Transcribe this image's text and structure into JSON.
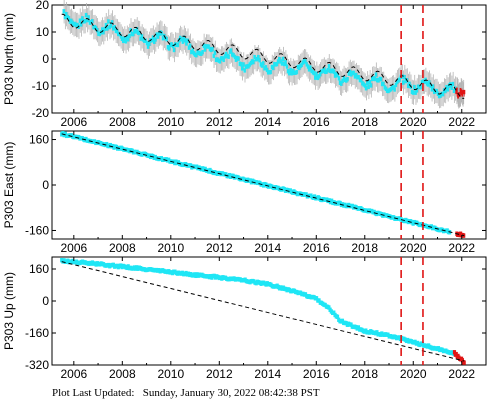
{
  "footer": {
    "label": "Plot Last Updated:",
    "value": "Sunday, January 30, 2022 08:42:38 PST"
  },
  "colors": {
    "data": "#1fe6f5",
    "error": "#b4b4b4",
    "recent": "#e01515",
    "trend": "#000000",
    "event": "#e01515"
  },
  "chart_data": [
    {
      "type": "scatter",
      "title": "",
      "xlabel": "",
      "ylabel": "P303 North (mm)",
      "xlim": [
        2005.1,
        2023.0
      ],
      "ylim": [
        -20,
        20
      ],
      "xticks": [
        2006,
        2008,
        2010,
        2012,
        2014,
        2016,
        2018,
        2020,
        2022
      ],
      "yticks": [
        -20,
        -10,
        0,
        10,
        20
      ],
      "event_lines": [
        2019.5,
        2020.4
      ],
      "trend": {
        "x": [
          2005.5,
          2022.1
        ],
        "y": [
          14.5,
          -12.5
        ],
        "seasonal_amplitude": 2.2
      },
      "series": [
        {
          "x": [
            2005.6,
            2006.0,
            2007.0,
            2008.0,
            2009.0,
            2010.0,
            2011.0,
            2012.0,
            2013.0,
            2014.0,
            2015.0,
            2016.0,
            2017.0,
            2018.0,
            2019.0,
            2020.0,
            2021.0,
            2021.9
          ],
          "y": [
            15.0,
            14.0,
            12.5,
            9.5,
            7.5,
            6.5,
            4.0,
            1.5,
            -1.0,
            -2.0,
            -3.0,
            -4.5,
            -6.0,
            -8.0,
            -9.5,
            -9.5,
            -11.0,
            -12.5
          ],
          "y_error": 4.5
        },
        {
          "x": [
            2021.8,
            2021.9,
            2022.0,
            2022.08
          ],
          "y": [
            -11.5,
            -12.5,
            -9.0,
            -11.0
          ],
          "y_error": 4.5
        }
      ]
    },
    {
      "type": "scatter",
      "title": "",
      "xlabel": "",
      "ylabel": "P303 East (mm)",
      "xlim": [
        2005.1,
        2023.0
      ],
      "ylim": [
        -190,
        190
      ],
      "xticks": [
        2006,
        2008,
        2010,
        2012,
        2014,
        2016,
        2018,
        2020,
        2022
      ],
      "yticks": [
        -160,
        0,
        160
      ],
      "event_lines": [
        2019.5,
        2020.4
      ],
      "trend": {
        "x": [
          2005.5,
          2022.1
        ],
        "y": [
          180,
          -178
        ],
        "seasonal_amplitude": 0
      },
      "series": [
        {
          "x": [
            2005.5,
            2006.0,
            2008.0,
            2010.0,
            2012.0,
            2014.0,
            2016.0,
            2018.0,
            2019.5,
            2021.5
          ],
          "y": [
            180,
            170,
            127,
            84,
            41,
            -2,
            -45,
            -88,
            -122,
            -165
          ],
          "y_error": 3
        },
        {
          "x": [
            2021.8,
            2022.08
          ],
          "y": [
            -171,
            -177
          ],
          "y_error": 3
        }
      ]
    },
    {
      "type": "scatter",
      "title": "",
      "xlabel": "",
      "ylabel": "P303 Up (mm)",
      "xlim": [
        2005.1,
        2023.0
      ],
      "ylim": [
        -320,
        220
      ],
      "xticks": [
        2006,
        2008,
        2010,
        2012,
        2014,
        2016,
        2018,
        2020,
        2022
      ],
      "yticks": [
        -320,
        -160,
        0,
        160
      ],
      "event_lines": [
        2019.5,
        2020.4
      ],
      "trend": {
        "x": [
          2005.5,
          2022.1
        ],
        "y": [
          197,
          -300
        ],
        "seasonal_amplitude": 0
      },
      "series": [
        {
          "x": [
            2005.5,
            2006.0,
            2007.0,
            2008.0,
            2009.0,
            2010.0,
            2011.0,
            2012.0,
            2013.0,
            2014.0,
            2015.0,
            2016.0,
            2016.5,
            2017.0,
            2018.0,
            2019.0,
            2020.0,
            2021.0,
            2021.7
          ],
          "y": [
            200,
            196,
            185,
            172,
            158,
            145,
            130,
            118,
            104,
            84,
            52,
            10,
            -33,
            -100,
            -150,
            -172,
            -205,
            -240,
            -260
          ],
          "y_error": 10
        },
        {
          "x": [
            2021.7,
            2022.0,
            2022.1
          ],
          "y": [
            -260,
            -295,
            -312
          ],
          "y_error": 10
        }
      ]
    }
  ]
}
